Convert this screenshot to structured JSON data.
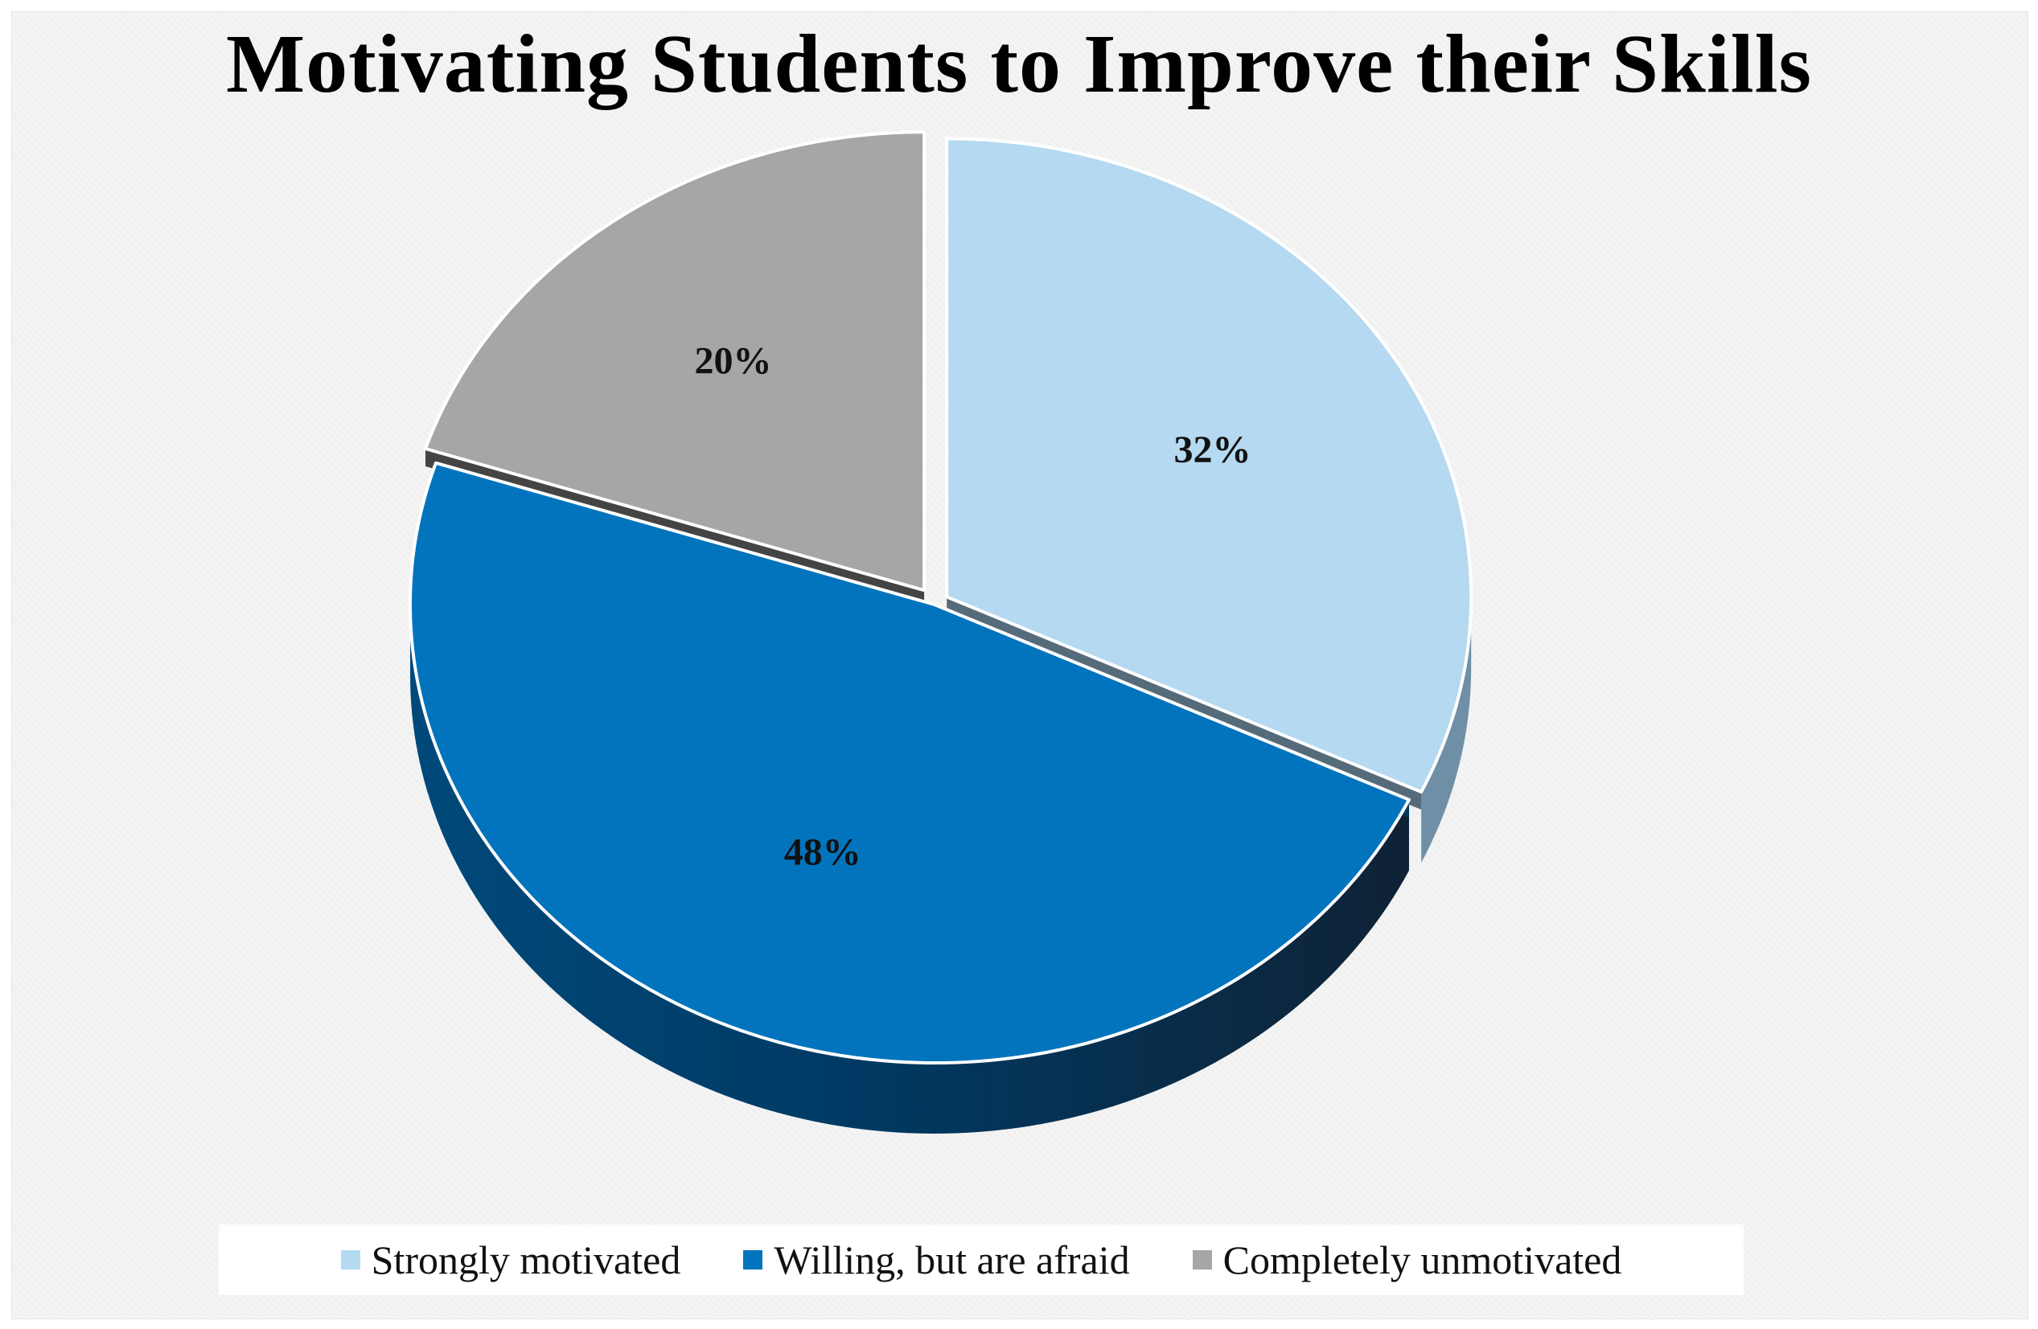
{
  "chart_data": {
    "type": "pie",
    "title": "Motivating Students to Improve their Skills",
    "slices": [
      {
        "label": "Strongly motivated",
        "value": 32,
        "display": "32%",
        "color": "#b4d9f1"
      },
      {
        "label": "Willing, but are afraid",
        "value": 48,
        "display": "48%",
        "color": "#0274be"
      },
      {
        "label": "Completely unmotivated",
        "value": 20,
        "display": "20%",
        "color": "#a6a6a6"
      }
    ],
    "style": "3d-exploded",
    "legend_position": "bottom"
  }
}
